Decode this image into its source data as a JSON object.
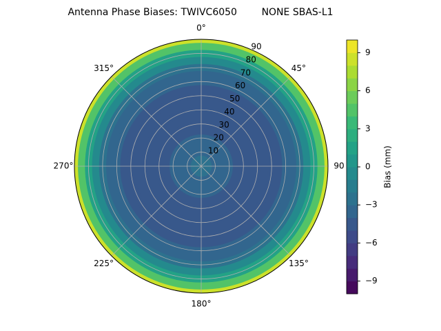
{
  "chart_data": {
    "type": "polar_contour",
    "title": "Antenna Phase Biases: TWIVC6050        NONE SBAS-L1",
    "r": [
      0,
      5,
      10,
      15,
      20,
      25,
      30,
      35,
      40,
      45,
      50,
      55,
      60,
      65,
      70,
      75,
      80,
      85,
      90
    ],
    "values": [
      -3,
      -3,
      -3.5,
      -4,
      -4,
      -4.5,
      -5,
      -5,
      -5,
      -5,
      -5,
      -4.5,
      -4,
      -3.5,
      -2.5,
      -1,
      1.5,
      4.5,
      8.5
    ],
    "rlim": [
      0,
      90
    ],
    "rticks": [
      10,
      20,
      30,
      40,
      50,
      60,
      70,
      80,
      90
    ],
    "angle_ticks": [
      {
        "value": 0,
        "label": "0°"
      },
      {
        "value": 45,
        "label": "45°"
      },
      {
        "value": 90,
        "label": "90"
      },
      {
        "value": 135,
        "label": "135°"
      },
      {
        "value": 180,
        "label": "180°"
      },
      {
        "value": 225,
        "label": "225°"
      },
      {
        "value": 270,
        "label": "270°"
      },
      {
        "value": 315,
        "label": "315°"
      }
    ],
    "direction": "clockwise",
    "zero_location": "N",
    "grid": true,
    "colormap": "viridis",
    "color_levels": 20,
    "colorbar_label": "Bias (mm)",
    "colorbar_lim": [
      -10,
      10
    ],
    "colorbar_ticks": [
      {
        "value": -9,
        "label": "−9"
      },
      {
        "value": -6,
        "label": "−6"
      },
      {
        "value": -3,
        "label": "−3"
      },
      0,
      3,
      6,
      9
    ]
  }
}
